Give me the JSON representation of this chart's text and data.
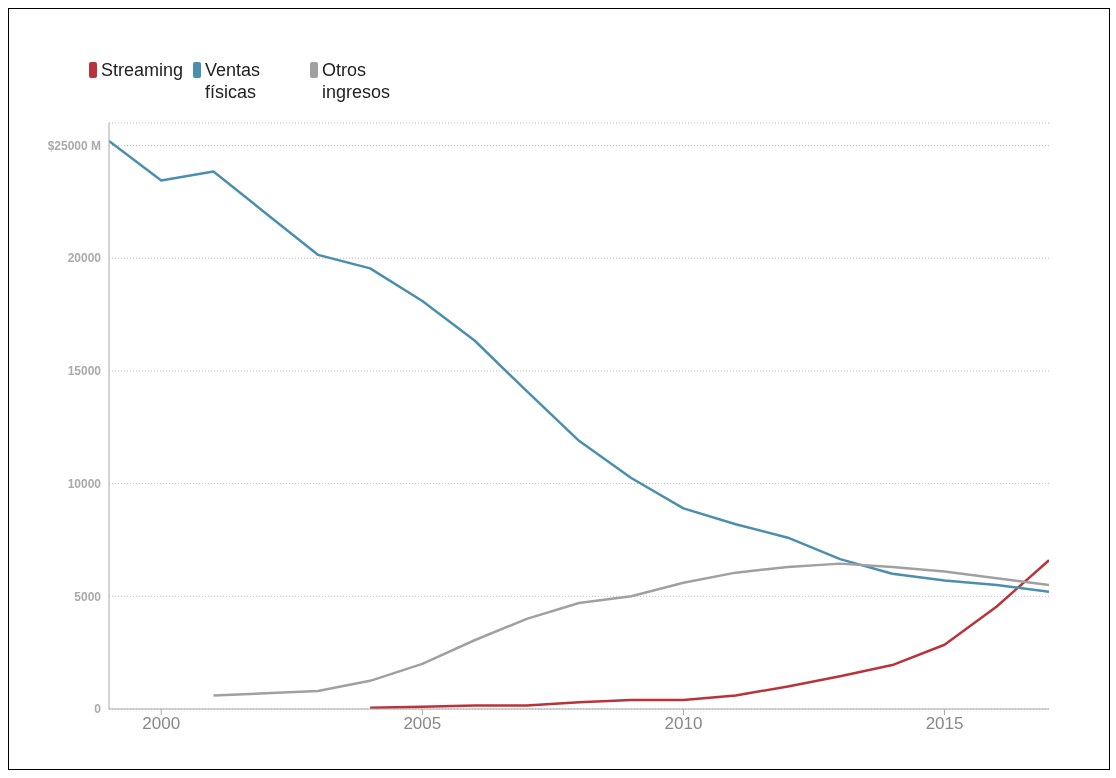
{
  "chart_data": {
    "type": "line",
    "x": [
      1999,
      2000,
      2001,
      2002,
      2003,
      2004,
      2005,
      2006,
      2007,
      2008,
      2009,
      2010,
      2011,
      2012,
      2013,
      2014,
      2015,
      2016,
      2017
    ],
    "series": [
      {
        "name": "Streaming",
        "color": "#b8343a",
        "values": [
          null,
          null,
          null,
          null,
          null,
          50,
          100,
          150,
          150,
          300,
          400,
          400,
          600,
          1000,
          1450,
          1950,
          2850,
          4550,
          6600
        ]
      },
      {
        "name": "Ventas físicas",
        "color": "#4a8fad",
        "values": [
          25200,
          23450,
          23850,
          22000,
          20150,
          19550,
          18100,
          16350,
          14100,
          11900,
          10250,
          8900,
          8200,
          7600,
          6650,
          6000,
          5700,
          5500,
          5200
        ]
      },
      {
        "name": "Otros ingresos",
        "color": "#a0a0a0",
        "values": [
          null,
          null,
          600,
          700,
          800,
          1250,
          2000,
          3050,
          4000,
          4700,
          5000,
          5600,
          6050,
          6300,
          6450,
          6300,
          6100,
          5800,
          5500
        ]
      }
    ],
    "xlim": [
      1999,
      2017
    ],
    "xticks": [
      2000,
      2005,
      2010,
      2015
    ],
    "ylim": [
      0,
      26000
    ],
    "yticks": [
      0,
      5000,
      10000,
      15000,
      20000,
      {
        "value": 25000,
        "label": "$25000 M"
      }
    ],
    "grid": "y",
    "legend": "top left",
    "marker": "none",
    "line_style": "solid"
  }
}
